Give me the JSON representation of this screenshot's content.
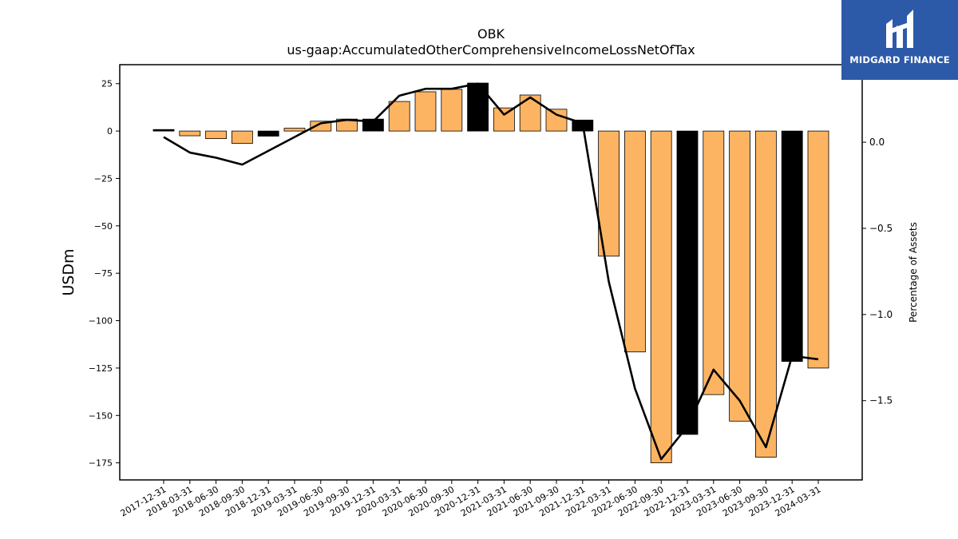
{
  "logo": {
    "text": "MIDGARD FINANCE",
    "icon": "midgard-logo-icon"
  },
  "chart_data": {
    "type": "bar",
    "title": "OBK",
    "subtitle": "us-gaap:AccumulatedOtherComprehensiveIncomeLossNetOfTax",
    "ylabel": "USDm",
    "y2label": "Percentage of Assets",
    "ylim": [
      -184,
      35
    ],
    "y2lim": [
      -1.96,
      0.45
    ],
    "yticks": [
      25,
      0,
      -25,
      -50,
      -75,
      -100,
      -125,
      -150,
      -175
    ],
    "y2ticks": [
      0.0,
      -0.5,
      -1.0,
      -1.5
    ],
    "categories": [
      "2017-12-31",
      "2018-03-31",
      "2018-06-30",
      "2018-09-30",
      "2018-12-31",
      "2019-03-31",
      "2019-06-30",
      "2019-09-30",
      "2019-12-31",
      "2020-03-31",
      "2020-06-30",
      "2020-09-30",
      "2020-12-31",
      "2021-03-31",
      "2021-06-30",
      "2021-09-30",
      "2021-12-31",
      "2022-03-31",
      "2022-06-30",
      "2022-09-30",
      "2022-12-31",
      "2023-03-31",
      "2023-06-30",
      "2023-09-30",
      "2023-12-31",
      "2024-03-31"
    ],
    "series": [
      {
        "type": "bar",
        "values": [
          0.8,
          -2.5,
          -4,
          -6.5,
          -2.7,
          1.5,
          5.2,
          6.3,
          6.3,
          15.6,
          20.7,
          22,
          25.3,
          12.2,
          19,
          11.5,
          5.8,
          -66,
          -116.5,
          -175,
          -160,
          -139,
          -153,
          -172,
          -121.5,
          -125
        ],
        "year_end_color": "#000000",
        "quarter_color": "#fdb462"
      },
      {
        "type": "line",
        "axis": "right",
        "color": "#000000",
        "values": [
          0.03,
          -0.06,
          -0.09,
          -0.13,
          -0.05,
          0.03,
          0.11,
          0.13,
          0.12,
          0.27,
          0.31,
          0.31,
          0.34,
          0.16,
          0.26,
          0.16,
          0.11,
          -0.81,
          -1.43,
          -1.84,
          -1.65,
          -1.32,
          -1.5,
          -1.77,
          -1.24,
          -1.26
        ]
      }
    ],
    "grid": false
  }
}
